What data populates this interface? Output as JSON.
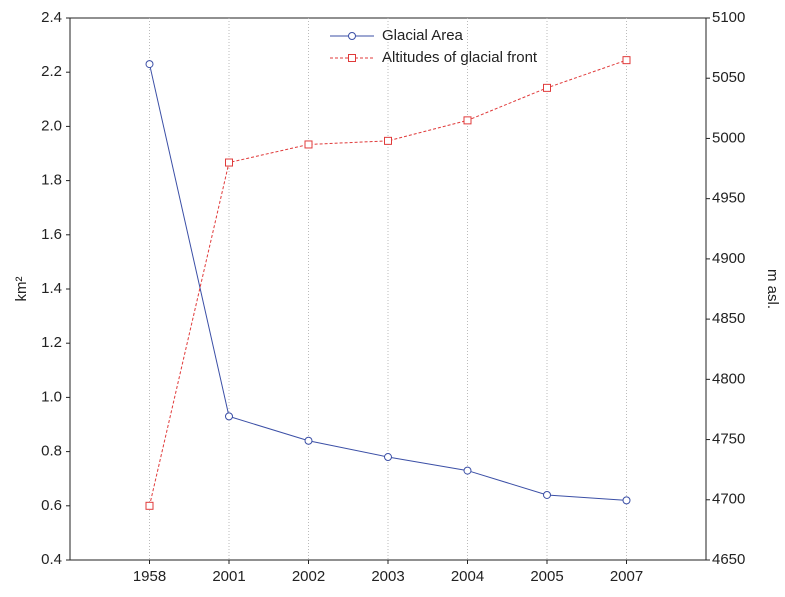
{
  "chart_data": {
    "type": "line",
    "categories": [
      "1958",
      "2001",
      "2002",
      "2003",
      "2004",
      "2005",
      "2007"
    ],
    "series": [
      {
        "name": "Glacial Area",
        "color": "#3b4fa6",
        "marker": "circle",
        "dashed": false,
        "values": [
          2.23,
          0.93,
          0.84,
          0.78,
          0.73,
          0.64,
          0.62
        ]
      },
      {
        "name": "Altitudes of glacial front",
        "color": "#e03a3a",
        "marker": "square",
        "dashed": true,
        "axis": "y2",
        "values": [
          4695,
          4980,
          4995,
          4998,
          5015,
          5042,
          5065
        ]
      }
    ],
    "ylabel": "km²",
    "y2label": "m asl.",
    "ylim": [
      0.4,
      2.4
    ],
    "yticks": [
      0.4,
      0.6,
      0.8,
      {
        "value": 1,
        "label": "1.0"
      },
      1.2,
      1.4,
      1.6,
      1.8,
      {
        "value": 2,
        "label": "2.0"
      },
      2.2,
      2.4
    ],
    "y2lim": [
      4650,
      5100
    ],
    "y2ticks": [
      4650,
      4700,
      4750,
      4800,
      4850,
      4900,
      4950,
      5000,
      5050,
      5100
    ],
    "grid": "x",
    "legend": "top"
  }
}
